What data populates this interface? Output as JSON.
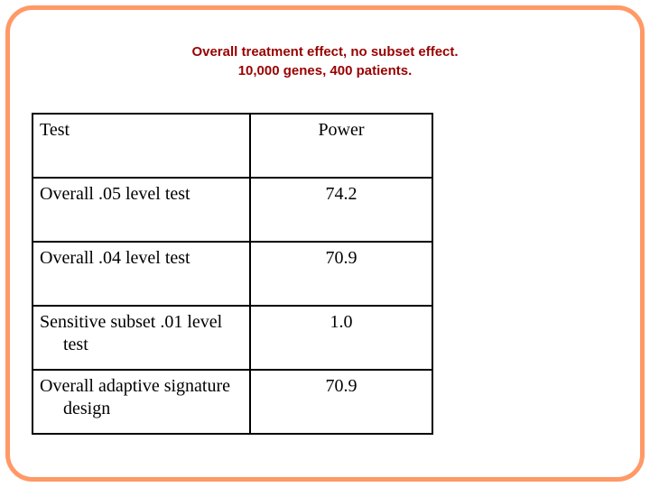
{
  "slide": {
    "title_line1": "Overall treatment effect, no subset effect.",
    "title_line2": "10,000 genes, 400 patients.",
    "title_color": "#990000",
    "border_color": "#FF9966",
    "background_color": "#FFFFFF"
  },
  "table": {
    "headers": {
      "test": "Test",
      "power": "Power"
    },
    "rows": [
      {
        "test_line1": "Overall .05 level test",
        "test_line2": "",
        "power": "74.2"
      },
      {
        "test_line1": "Overall .04 level test",
        "test_line2": "",
        "power": "70.9"
      },
      {
        "test_line1": "Sensitive subset .01 level",
        "test_line2": "test",
        "power": "1.0"
      },
      {
        "test_line1": "Overall adaptive signature",
        "test_line2": "design",
        "power": "70.9"
      }
    ]
  }
}
